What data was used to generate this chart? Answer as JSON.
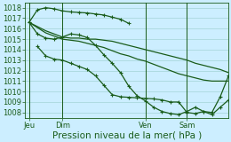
{
  "background_color": "#cceeff",
  "grid_color": "#99cccc",
  "line_color": "#1a5c1a",
  "marker": "+",
  "marker_size": 3.5,
  "marker_lw": 0.8,
  "linewidth": 0.9,
  "ylim": [
    1007.5,
    1018.5
  ],
  "yticks": [
    1008,
    1009,
    1010,
    1011,
    1012,
    1013,
    1014,
    1015,
    1016,
    1017,
    1018
  ],
  "xlabel": "Pression niveau de la mer( hPa )",
  "xlabel_fontsize": 7.5,
  "tick_fontsize": 6,
  "xtick_labels": [
    "Jeu",
    "Dim",
    "Ven",
    "Sam"
  ],
  "xtick_positions": [
    0,
    8,
    28,
    38
  ],
  "xlim": [
    -1,
    48
  ],
  "vline_positions": [
    0,
    8,
    28,
    38
  ],
  "series": [
    {
      "x": [
        0,
        2,
        4,
        6,
        8,
        10,
        12,
        14,
        16,
        18,
        20,
        22,
        24
      ],
      "y": [
        1016.6,
        1017.8,
        1018.0,
        1017.9,
        1017.7,
        1017.6,
        1017.55,
        1017.5,
        1017.4,
        1017.3,
        1017.1,
        1016.9,
        1016.5
      ],
      "has_markers": true
    },
    {
      "x": [
        0,
        2,
        4,
        6,
        8,
        10,
        12,
        14,
        16,
        18,
        20,
        22,
        24,
        26,
        28,
        30,
        32,
        34,
        36,
        38,
        40,
        42,
        44,
        46,
        48
      ],
      "y": [
        1016.6,
        1016.2,
        1015.8,
        1015.5,
        1015.2,
        1015.1,
        1015.1,
        1015.0,
        1015.0,
        1014.9,
        1014.8,
        1014.6,
        1014.4,
        1014.2,
        1014.0,
        1013.8,
        1013.6,
        1013.4,
        1013.2,
        1013.0,
        1012.7,
        1012.5,
        1012.3,
        1012.1,
        1011.8
      ],
      "has_markers": false
    },
    {
      "x": [
        0,
        2,
        4,
        6,
        8,
        10,
        12,
        14,
        16,
        18,
        20,
        22,
        24,
        26,
        28,
        30,
        32,
        34,
        36,
        38,
        40,
        42,
        44,
        46,
        48
      ],
      "y": [
        1016.6,
        1016.1,
        1015.6,
        1015.3,
        1015.0,
        1014.9,
        1014.8,
        1014.6,
        1014.4,
        1014.2,
        1013.9,
        1013.6,
        1013.4,
        1013.1,
        1012.9,
        1012.6,
        1012.3,
        1012.0,
        1011.7,
        1011.5,
        1011.3,
        1011.1,
        1011.0,
        1011.0,
        1011.0
      ],
      "has_markers": false
    },
    {
      "x": [
        0,
        2,
        4,
        6,
        8,
        10,
        12,
        14,
        16,
        18,
        20,
        22,
        24,
        26,
        28,
        30,
        32,
        34,
        36,
        38,
        40,
        42,
        44,
        46,
        48
      ],
      "y": [
        1016.6,
        1015.5,
        1015.1,
        1015.0,
        1015.2,
        1015.5,
        1015.4,
        1015.15,
        1014.4,
        1013.5,
        1012.7,
        1011.8,
        1010.5,
        1009.6,
        1009.1,
        1008.5,
        1008.1,
        1007.9,
        1007.8,
        1008.1,
        1008.5,
        1008.1,
        1007.8,
        1008.5,
        1009.2
      ],
      "has_markers": true
    },
    {
      "x": [
        2,
        4,
        6,
        8,
        10,
        12,
        14,
        16,
        18,
        20,
        22,
        24,
        26,
        28,
        30,
        32,
        34,
        36,
        38,
        40,
        42,
        44,
        46,
        48
      ],
      "y": [
        1014.3,
        1013.4,
        1013.1,
        1013.0,
        1012.7,
        1012.4,
        1012.1,
        1011.5,
        1010.6,
        1009.7,
        1009.5,
        1009.45,
        1009.4,
        1009.35,
        1009.3,
        1009.2,
        1009.0,
        1009.0,
        1008.0,
        1007.9,
        1008.1,
        1008.0,
        1009.5,
        1011.5
      ],
      "has_markers": true
    }
  ]
}
